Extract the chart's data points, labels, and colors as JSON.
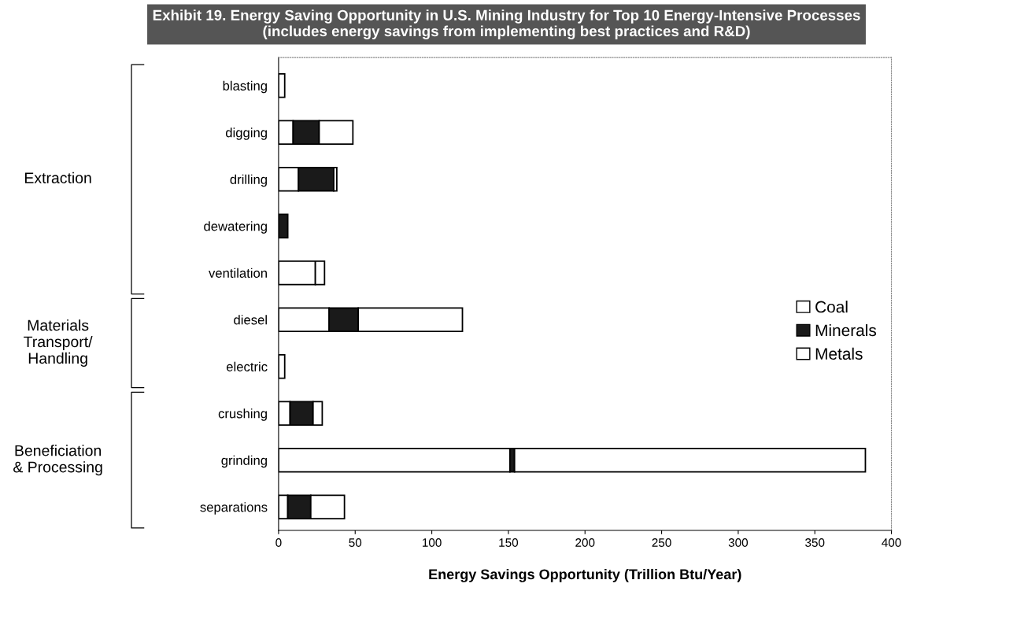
{
  "chart_data": {
    "type": "bar",
    "orientation": "horizontal",
    "stacked": true,
    "title": "Exhibit 19. Energy Saving Opportunity in U.S. Mining Industry for Top 10 Energy-Intensive Processes\n(includes energy savings from implementing best practices and R&D)",
    "xlabel": "Energy Savings Opportunity (Trillion Btu/Year)",
    "categories": [
      "blasting",
      "digging",
      "drilling",
      "dewatering",
      "ventilation",
      "diesel",
      "electric",
      "crushing",
      "grinding",
      "separations"
    ],
    "series": [
      {
        "name": "Coal",
        "color": "#ffffff",
        "values": [
          null,
          9.5,
          13,
          null,
          24,
          33,
          4,
          7.5,
          151,
          6
        ]
      },
      {
        "name": "Minerals",
        "color": "#1a1a1a",
        "values": [
          null,
          17,
          23,
          6,
          null,
          19,
          null,
          15,
          3,
          15
        ]
      },
      {
        "name": "Metals",
        "color": "#ffffff",
        "values": [
          4,
          22,
          2,
          null,
          6,
          68,
          null,
          6,
          229,
          22
        ]
      }
    ],
    "xlim": [
      0,
      400
    ],
    "xticks": [
      0,
      50,
      100,
      150,
      200,
      250,
      300,
      350,
      400
    ],
    "annotations": [
      "Extraction",
      "Materials\nTransport/\nHandling",
      "Beneficiation\n& Processing"
    ],
    "legend": "right",
    "grid": false
  }
}
